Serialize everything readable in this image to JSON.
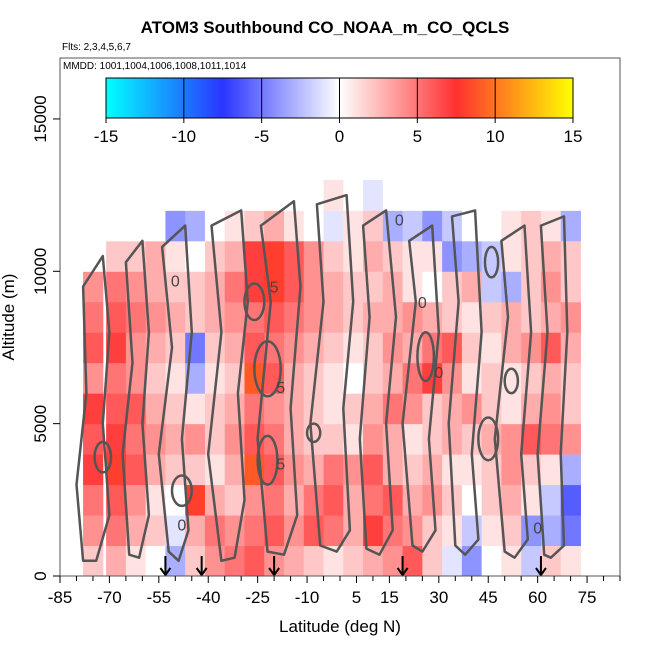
{
  "chart_data": {
    "type": "heatmap",
    "title": "ATOM3 Southbound CO_NOAA_m_CO_QCLS",
    "flights_label": "Flts: 2,3,4,5,6,7",
    "dates_label": "MMDD: 1001,1004,1006,1008,1011,1014",
    "xlabel": "Latitude (deg N)",
    "ylabel": "Altitude (m)",
    "xlim": [
      -85,
      85
    ],
    "ylim": [
      0,
      17000
    ],
    "x_ticks": [
      -85,
      -70,
      -55,
      -40,
      -25,
      -10,
      5,
      15,
      30,
      45,
      60,
      75
    ],
    "y_ticks": [
      0,
      5000,
      10000,
      15000
    ],
    "colorbar": {
      "range": [
        -15,
        15
      ],
      "ticks": [
        -15,
        -10,
        -5,
        0,
        5,
        10,
        15
      ],
      "colors": [
        "#00ffff",
        "#2a35ff",
        "#ffffff",
        "#ff3030",
        "#ffff00"
      ],
      "placement": "top"
    },
    "contour_levels": [
      "0",
      "5"
    ],
    "contour_color": "#555555",
    "arrow_latitudes": [
      -53,
      -42,
      -20,
      19,
      61
    ],
    "lat_bins": [
      -75,
      -68,
      -62,
      -56,
      -50,
      -44,
      -38,
      -32,
      -26,
      -20,
      -14,
      -8,
      -2,
      4,
      10,
      16,
      22,
      28,
      34,
      40,
      46,
      52,
      58,
      64,
      70
    ],
    "alt_bins": [
      500,
      1500,
      2500,
      3500,
      4500,
      5500,
      6500,
      7500,
      8500,
      9500,
      10500,
      11500,
      12500
    ],
    "values": [
      [
        2,
        3,
        1,
        0,
        -3,
        2,
        4,
        5,
        6,
        4,
        3,
        2,
        1,
        2,
        3,
        4,
        6,
        2,
        -1,
        -4,
        0,
        1,
        -2,
        2,
        1
      ],
      [
        4,
        5,
        3,
        2,
        -1,
        3,
        5,
        4,
        5,
        6,
        4,
        6,
        5,
        3,
        7,
        5,
        4,
        2,
        1,
        -2,
        1,
        2,
        -4,
        -3,
        -5
      ],
      [
        5,
        6,
        4,
        1,
        0,
        8,
        3,
        2,
        4,
        5,
        3,
        5,
        6,
        3,
        5,
        6,
        3,
        4,
        2,
        0,
        2,
        3,
        1,
        -2,
        -6
      ],
      [
        7,
        8,
        6,
        3,
        2,
        2,
        1,
        3,
        9,
        6,
        4,
        3,
        5,
        4,
        6,
        3,
        2,
        3,
        1,
        1,
        2,
        4,
        2,
        1,
        -3
      ],
      [
        6,
        7,
        5,
        4,
        3,
        4,
        2,
        4,
        6,
        5,
        3,
        2,
        2,
        1,
        4,
        3,
        1,
        2,
        3,
        2,
        3,
        4,
        6,
        5,
        4
      ],
      [
        7,
        6,
        6,
        3,
        2,
        1,
        2,
        3,
        5,
        4,
        3,
        2,
        1,
        2,
        3,
        5,
        4,
        2,
        3,
        4,
        2,
        1,
        3,
        4,
        2
      ],
      [
        4,
        5,
        4,
        2,
        1,
        -3,
        1,
        2,
        9,
        6,
        3,
        2,
        1,
        0,
        2,
        3,
        5,
        7,
        4,
        1,
        2,
        1,
        2,
        3,
        2
      ],
      [
        6,
        7,
        4,
        3,
        2,
        -5,
        2,
        3,
        6,
        5,
        4,
        3,
        2,
        1,
        2,
        4,
        3,
        5,
        6,
        2,
        1,
        3,
        4,
        6,
        3
      ],
      [
        5,
        6,
        5,
        4,
        3,
        2,
        3,
        4,
        5,
        6,
        5,
        4,
        3,
        2,
        3,
        3,
        4,
        3,
        2,
        1,
        2,
        3,
        2,
        3,
        4
      ],
      [
        4,
        5,
        4,
        3,
        2,
        2,
        3,
        5,
        7,
        8,
        6,
        4,
        3,
        2,
        2,
        3,
        1,
        0,
        2,
        3,
        -2,
        -3,
        2,
        4,
        2
      ],
      [
        0,
        2,
        2,
        3,
        1,
        0,
        2,
        3,
        7,
        8,
        6,
        4,
        2,
        1,
        3,
        2,
        1,
        1,
        -4,
        -3,
        -2,
        1,
        2,
        3,
        2
      ],
      [
        0,
        0,
        0,
        0,
        -4,
        -3,
        0,
        1,
        2,
        3,
        1,
        0,
        -1,
        1,
        2,
        -3,
        -2,
        -4,
        -2,
        0,
        0,
        1,
        2,
        1,
        -3
      ],
      [
        0,
        0,
        0,
        0,
        0,
        0,
        0,
        0,
        0,
        0,
        0,
        0,
        1,
        0,
        -1,
        0,
        0,
        0,
        0,
        0,
        0,
        0,
        0,
        0,
        0
      ]
    ]
  }
}
